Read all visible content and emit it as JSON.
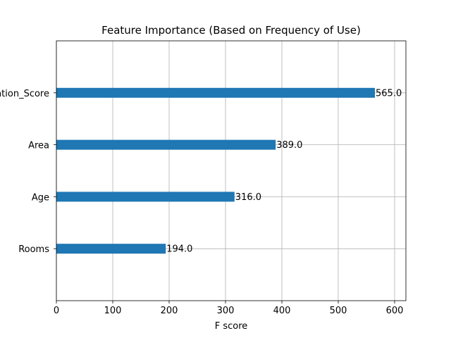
{
  "chart_data": {
    "type": "bar",
    "orientation": "horizontal",
    "title": "Feature Importance (Based on Frequency of Use)",
    "xlabel": "F score",
    "ylabel": "",
    "categories": [
      "Location_Score",
      "Area",
      "Age",
      "Rooms"
    ],
    "values": [
      565,
      389,
      316,
      194
    ],
    "value_labels": [
      "565.0",
      "389.0",
      "316.0",
      "194.0"
    ],
    "xlim": [
      0,
      620
    ],
    "xticks": [
      0,
      100,
      200,
      300,
      400,
      500,
      600
    ],
    "xtick_labels": [
      "0",
      "100",
      "200",
      "300",
      "400",
      "500",
      "600"
    ],
    "grid": true,
    "bar_color": "#1f77b4",
    "grid_color": "#b0b0b0"
  }
}
